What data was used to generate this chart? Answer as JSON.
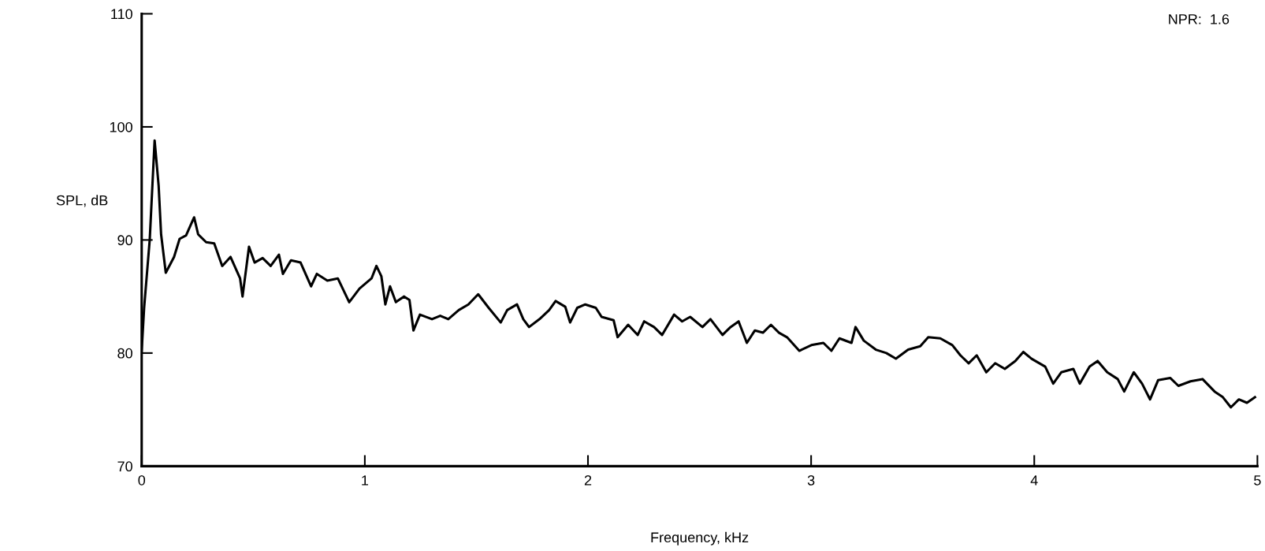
{
  "chart_data": {
    "type": "line",
    "xlabel": "Frequency, kHz",
    "ylabel": "SPL, dB",
    "annotations": [
      "NPR:  1.6"
    ],
    "xlim": [
      0,
      5
    ],
    "xticks": [
      0,
      1,
      2,
      3,
      4,
      5
    ],
    "ylim": [
      70,
      110
    ],
    "yticks": [
      70,
      80,
      90,
      100,
      110
    ],
    "grid": false,
    "series": [
      {
        "color": "#000000",
        "x": [
          0,
          0.011,
          0.036,
          0.058,
          0.076,
          0.087,
          0.108,
          0.145,
          0.17,
          0.199,
          0.235,
          0.253,
          0.289,
          0.325,
          0.361,
          0.398,
          0.441,
          0.452,
          0.481,
          0.506,
          0.542,
          0.578,
          0.615,
          0.633,
          0.669,
          0.712,
          0.759,
          0.785,
          0.832,
          0.879,
          0.93,
          0.976,
          1.03,
          1.052,
          1.074,
          1.092,
          1.113,
          1.139,
          1.175,
          1.2,
          1.218,
          1.247,
          1.301,
          1.338,
          1.374,
          1.421,
          1.464,
          1.508,
          1.555,
          1.609,
          1.638,
          1.682,
          1.71,
          1.736,
          1.783,
          1.826,
          1.855,
          1.898,
          1.92,
          1.952,
          1.988,
          2.035,
          2.061,
          2.115,
          2.133,
          2.18,
          2.223,
          2.252,
          2.296,
          2.332,
          2.386,
          2.422,
          2.458,
          2.513,
          2.549,
          2.603,
          2.639,
          2.675,
          2.712,
          2.748,
          2.784,
          2.82,
          2.856,
          2.892,
          2.947,
          3.001,
          3.055,
          3.091,
          3.127,
          3.181,
          3.199,
          3.236,
          3.29,
          3.337,
          3.38,
          3.435,
          3.489,
          3.525,
          3.579,
          3.633,
          3.669,
          3.706,
          3.742,
          3.785,
          3.825,
          3.868,
          3.915,
          3.951,
          3.988,
          4.049,
          4.085,
          4.121,
          4.175,
          4.204,
          4.248,
          4.284,
          4.327,
          4.374,
          4.403,
          4.446,
          4.483,
          4.519,
          4.555,
          4.609,
          4.646,
          4.7,
          4.754,
          4.808,
          4.845,
          4.881,
          4.917,
          4.953,
          4.989
        ],
        "values": [
          80.2,
          84,
          90,
          98.8,
          94.8,
          90.5,
          87.1,
          88.5,
          90.1,
          90.4,
          92,
          90.5,
          89.8,
          89.7,
          87.7,
          88.5,
          86.6,
          85,
          89.4,
          88,
          88.4,
          87.7,
          88.7,
          87,
          88.2,
          88,
          85.9,
          87,
          86.4,
          86.6,
          84.5,
          85.7,
          86.6,
          87.7,
          86.8,
          84.3,
          85.9,
          84.5,
          85,
          84.7,
          82,
          83.4,
          83,
          83.3,
          83,
          83.8,
          84.3,
          85.2,
          84,
          82.7,
          83.8,
          84.3,
          83,
          82.3,
          83,
          83.8,
          84.6,
          84.1,
          82.7,
          84,
          84.3,
          84,
          83.2,
          82.9,
          81.4,
          82.5,
          81.6,
          82.8,
          82.3,
          81.6,
          83.4,
          82.8,
          83.2,
          82.3,
          83,
          81.6,
          82.3,
          82.8,
          80.9,
          82,
          81.8,
          82.5,
          81.8,
          81.4,
          80.2,
          80.7,
          80.9,
          80.2,
          81.3,
          80.9,
          82.3,
          81.1,
          80.3,
          80,
          79.5,
          80.3,
          80.6,
          81.4,
          81.3,
          80.7,
          79.8,
          79.1,
          79.8,
          78.3,
          79.1,
          78.6,
          79.3,
          80.1,
          79.5,
          78.8,
          77.3,
          78.3,
          78.6,
          77.3,
          78.8,
          79.3,
          78.3,
          77.7,
          76.6,
          78.3,
          77.3,
          75.9,
          77.6,
          77.8,
          77.1,
          77.5,
          77.7,
          76.6,
          76.1,
          75.2,
          75.9,
          75.6,
          76.1
        ]
      }
    ]
  }
}
